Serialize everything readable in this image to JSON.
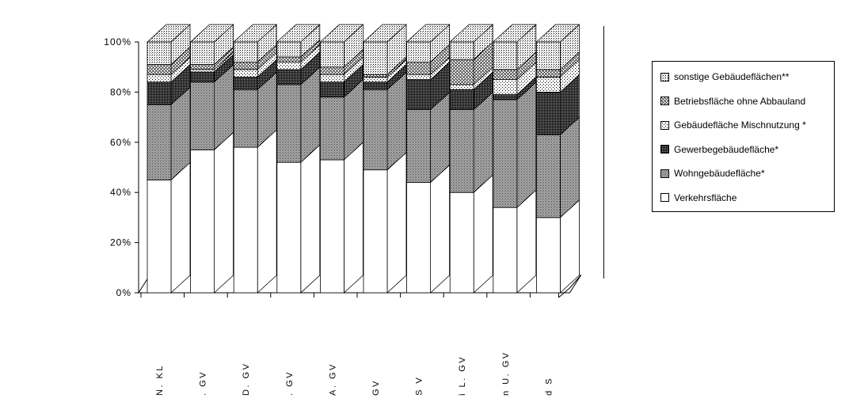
{
  "chart_data": {
    "type": "bar",
    "stacked": true,
    "three_d": true,
    "percent_stacked": true,
    "categories": [
      "N. KL",
      ". GV",
      "D. GV",
      ". GV",
      "A. GV",
      "GV",
      "S V",
      "i L. GV",
      "n U. GV",
      "d S"
    ],
    "series": [
      {
        "name": "Verkehrsfläche",
        "pattern": "blank",
        "values": [
          45,
          57,
          58,
          52,
          53,
          49,
          44,
          40,
          34,
          30
        ]
      },
      {
        "name": "Wohngebäudefläche*",
        "pattern": "dense-dots",
        "values": [
          30,
          27,
          23,
          31,
          25,
          32,
          29,
          33,
          43,
          33
        ]
      },
      {
        "name": "Gewerbegebäudefläche*",
        "pattern": "dark",
        "values": [
          9,
          4,
          5,
          6,
          6,
          3,
          12,
          8,
          2,
          17
        ]
      },
      {
        "name": "Gebäudefläche Mischnutzung *",
        "pattern": "sparse-dots",
        "values": [
          3,
          1,
          3,
          3,
          3,
          2,
          2,
          2,
          6,
          6
        ]
      },
      {
        "name": "Betriebsfläche ohne Abbauland",
        "pattern": "cross-hatch",
        "values": [
          4,
          2,
          3,
          2,
          3,
          1,
          5,
          10,
          4,
          3
        ]
      },
      {
        "name": "sonstige Gebäudeflächen**",
        "pattern": "fine-dots",
        "values": [
          9,
          9,
          8,
          6,
          10,
          13,
          8,
          7,
          11,
          11
        ]
      }
    ],
    "yticks": [
      "0%",
      "20%",
      "40%",
      "60%",
      "80%",
      "100%"
    ],
    "ylim": [
      0,
      100
    ],
    "legend_position": "right",
    "grid": false
  }
}
